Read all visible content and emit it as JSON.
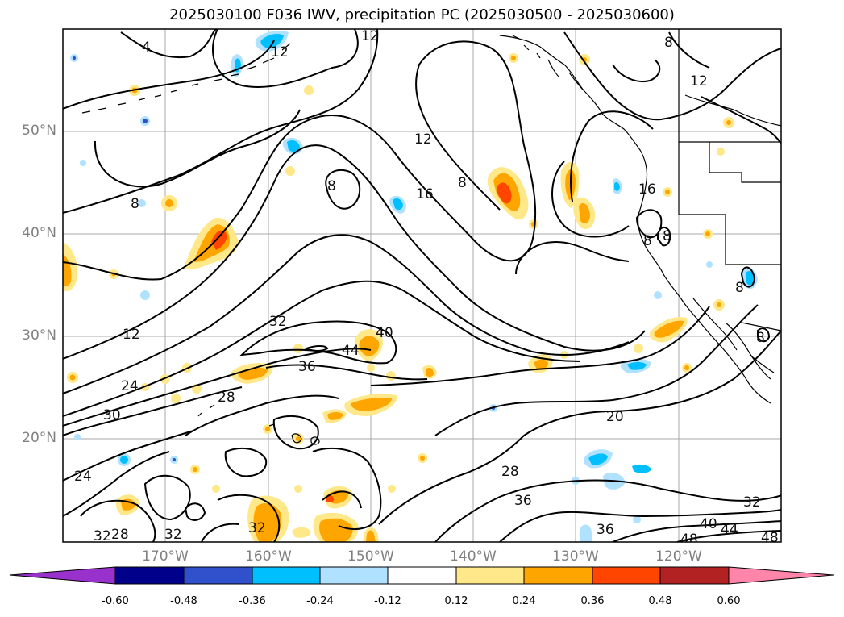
{
  "title": "2025030100 F036 IWV, precipitation PC (2025030500 - 2025030600)",
  "lat_labels": [
    "50°N",
    "40°N",
    "30°N",
    "20°N"
  ],
  "lon_labels": [
    "170°W",
    "160°W",
    "150°W",
    "140°W",
    "130°W",
    "120°W"
  ],
  "colorbar": {
    "ticks": [
      "-0.60",
      "-0.48",
      "-0.36",
      "-0.24",
      "-0.12",
      "0.12",
      "0.24",
      "0.36",
      "0.48",
      "0.60"
    ],
    "colors": [
      "#9932cc",
      "#00008b",
      "#3050cc",
      "#00bfff",
      "#b0e2ff",
      "#ffffff",
      "#ffe88a",
      "#ffa500",
      "#ff4500",
      "#b22222",
      "#ff85aa"
    ]
  },
  "contour_labels": [
    "4",
    "12",
    "12",
    "12",
    "12",
    "8",
    "8",
    "8",
    "8",
    "16",
    "16",
    "8",
    "8",
    "12",
    "32",
    "40",
    "44",
    "36",
    "24",
    "30",
    "28",
    "24",
    "20",
    "28",
    "36",
    "32",
    "40",
    "44",
    "48",
    "48",
    "36",
    "32",
    "28",
    "32",
    "32",
    "8",
    "8"
  ],
  "fill_colors": {
    "yellow": "#ffe88a",
    "orange": "#ffa500",
    "red": "#ff4500",
    "lightblue": "#b0e2ff",
    "blue": "#00bfff",
    "land": "#ffffff"
  }
}
